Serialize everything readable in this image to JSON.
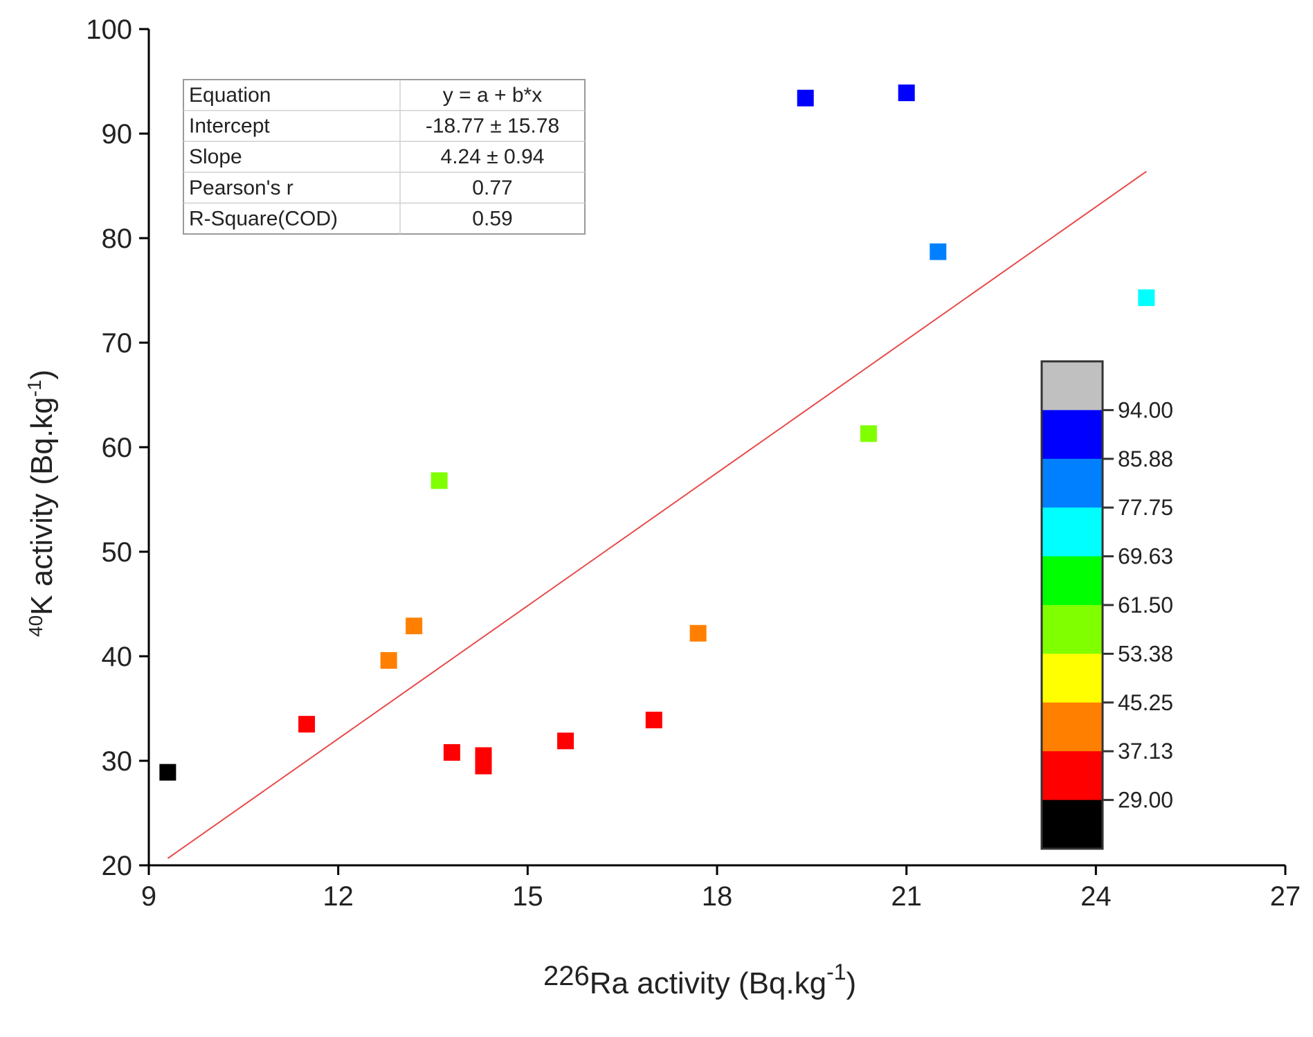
{
  "chart_data": {
    "type": "scatter",
    "xlabel": {
      "sup": "226",
      "main": "Ra activity (Bq.kg",
      "exp": "-1",
      "tail": ")"
    },
    "ylabel": {
      "sup": "40",
      "main": "K activity (Bq.kg",
      "exp": "-1",
      "tail": ")"
    },
    "xlim": [
      9,
      27
    ],
    "ylim": [
      20,
      100
    ],
    "xticks": [
      9,
      12,
      15,
      18,
      21,
      24,
      27
    ],
    "yticks": [
      20,
      30,
      40,
      50,
      60,
      70,
      80,
      90,
      100
    ],
    "grid": false,
    "points": [
      {
        "x": 9.3,
        "y": 28.9
      },
      {
        "x": 11.5,
        "y": 33.5
      },
      {
        "x": 12.8,
        "y": 39.6
      },
      {
        "x": 13.2,
        "y": 42.9
      },
      {
        "x": 13.6,
        "y": 56.8
      },
      {
        "x": 13.8,
        "y": 30.8
      },
      {
        "x": 14.3,
        "y": 30.5
      },
      {
        "x": 14.3,
        "y": 29.5
      },
      {
        "x": 15.6,
        "y": 31.9
      },
      {
        "x": 17.0,
        "y": 33.9
      },
      {
        "x": 17.7,
        "y": 42.2
      },
      {
        "x": 19.4,
        "y": 93.4
      },
      {
        "x": 20.4,
        "y": 61.3
      },
      {
        "x": 21.0,
        "y": 93.9
      },
      {
        "x": 21.5,
        "y": 78.7
      },
      {
        "x": 24.8,
        "y": 74.3
      }
    ],
    "fit_line": {
      "intercept": -18.77,
      "slope": 4.24,
      "x_range": [
        9.3,
        24.8
      ],
      "color": "#e84a4a"
    },
    "stats_table": [
      [
        "Equation",
        "y = a + b*x"
      ],
      [
        "Intercept",
        "-18.77 ± 15.78"
      ],
      [
        "Slope",
        "4.24 ± 0.94"
      ],
      [
        "Pearson's r",
        "0.77"
      ],
      [
        "R-Square(COD)",
        "0.59"
      ]
    ],
    "colorbar": {
      "tick_labels": [
        "94.00",
        "85.88",
        "77.75",
        "69.63",
        "61.50",
        "53.38",
        "45.25",
        "37.13",
        "29.00"
      ],
      "boundaries": [
        29.0,
        37.13,
        45.25,
        53.38,
        61.5,
        69.63,
        77.75,
        85.88,
        94.0
      ],
      "under_color": "#000000",
      "over_color": "#c0c0c0",
      "colors": [
        "#ff0000",
        "#ff8000",
        "#ffff00",
        "#80ff00",
        "#00ff00",
        "#00ffff",
        "#0080ff",
        "#0000ff"
      ]
    }
  }
}
